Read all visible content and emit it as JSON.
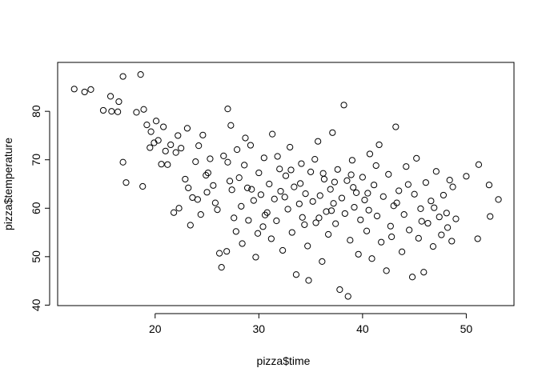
{
  "chart_data": {
    "type": "scatter",
    "title": "",
    "xlabel": "pizza$time",
    "ylabel": "pizza$temperature",
    "xlim": [
      10.6,
      54.6
    ],
    "ylim": [
      39.9,
      90.1
    ],
    "x_ticks": [
      20,
      30,
      40,
      50
    ],
    "y_ticks": [
      40,
      50,
      60,
      70,
      80
    ],
    "grid": false,
    "legend": "none",
    "marker": "open-circle",
    "series": [
      {
        "points": [
          [
            12.2,
            84.6
          ],
          [
            13.2,
            84.0
          ],
          [
            13.8,
            84.5
          ],
          [
            15.0,
            80.2
          ],
          [
            15.8,
            80.0
          ],
          [
            16.4,
            79.9
          ],
          [
            16.5,
            82.0
          ],
          [
            16.9,
            87.2
          ],
          [
            18.6,
            87.6
          ],
          [
            18.2,
            79.8
          ],
          [
            18.9,
            80.4
          ],
          [
            17.2,
            65.3
          ],
          [
            18.8,
            64.5
          ],
          [
            16.9,
            69.5
          ],
          [
            15.7,
            83.1
          ],
          [
            19.2,
            77.2
          ],
          [
            19.6,
            75.8
          ],
          [
            19.5,
            72.5
          ],
          [
            20.3,
            74.0
          ],
          [
            20.6,
            69.1
          ],
          [
            20.8,
            76.8
          ],
          [
            21.5,
            73.1
          ],
          [
            22.0,
            71.5
          ],
          [
            21.8,
            59.1
          ],
          [
            22.3,
            60.0
          ],
          [
            22.5,
            72.4
          ],
          [
            23.2,
            64.2
          ],
          [
            23.6,
            62.2
          ],
          [
            23.4,
            56.5
          ],
          [
            24.1,
            61.8
          ],
          [
            24.4,
            58.7
          ],
          [
            24.2,
            72.9
          ],
          [
            24.9,
            66.8
          ],
          [
            25.3,
            70.2
          ],
          [
            25.0,
            63.3
          ],
          [
            25.6,
            64.7
          ],
          [
            25.8,
            61.1
          ],
          [
            26.0,
            59.7
          ],
          [
            26.4,
            47.8
          ],
          [
            26.2,
            50.7
          ],
          [
            26.9,
            51.1
          ],
          [
            27.0,
            80.5
          ],
          [
            27.3,
            77.1
          ],
          [
            27.0,
            69.5
          ],
          [
            27.4,
            63.8
          ],
          [
            27.6,
            58.0
          ],
          [
            27.8,
            55.2
          ],
          [
            27.9,
            72.1
          ],
          [
            28.1,
            66.3
          ],
          [
            28.3,
            60.4
          ],
          [
            28.4,
            52.7
          ],
          [
            28.6,
            68.9
          ],
          [
            28.9,
            64.2
          ],
          [
            29.0,
            57.5
          ],
          [
            29.2,
            73.0
          ],
          [
            29.5,
            61.6
          ],
          [
            29.7,
            49.9
          ],
          [
            30.0,
            67.3
          ],
          [
            30.2,
            62.8
          ],
          [
            30.4,
            56.2
          ],
          [
            30.5,
            70.4
          ],
          [
            30.8,
            59.1
          ],
          [
            31.0,
            65.0
          ],
          [
            31.2,
            53.7
          ],
          [
            31.3,
            75.3
          ],
          [
            31.5,
            61.9
          ],
          [
            31.7,
            57.4
          ],
          [
            32.0,
            68.1
          ],
          [
            32.1,
            63.5
          ],
          [
            32.3,
            51.3
          ],
          [
            32.6,
            66.7
          ],
          [
            32.8,
            59.8
          ],
          [
            33.0,
            72.6
          ],
          [
            33.2,
            55.0
          ],
          [
            33.4,
            64.4
          ],
          [
            33.6,
            46.3
          ],
          [
            33.9,
            60.9
          ],
          [
            34.1,
            69.2
          ],
          [
            34.2,
            58.1
          ],
          [
            34.5,
            63.0
          ],
          [
            34.7,
            52.2
          ],
          [
            34.8,
            45.1
          ],
          [
            35.0,
            67.5
          ],
          [
            35.2,
            61.4
          ],
          [
            35.5,
            57.0
          ],
          [
            35.7,
            73.8
          ],
          [
            35.9,
            62.6
          ],
          [
            36.1,
            49.0
          ],
          [
            36.3,
            66.0
          ],
          [
            36.5,
            59.3
          ],
          [
            36.7,
            54.6
          ],
          [
            36.9,
            63.9
          ],
          [
            37.1,
            75.6
          ],
          [
            37.2,
            61.0
          ],
          [
            37.4,
            56.8
          ],
          [
            37.6,
            68.0
          ],
          [
            37.8,
            43.2
          ],
          [
            38.0,
            62.1
          ],
          [
            38.2,
            81.3
          ],
          [
            38.3,
            58.9
          ],
          [
            38.5,
            65.7
          ],
          [
            38.6,
            41.8
          ],
          [
            38.8,
            53.4
          ],
          [
            39.0,
            69.9
          ],
          [
            39.2,
            60.2
          ],
          [
            39.4,
            63.2
          ],
          [
            39.6,
            50.5
          ],
          [
            39.8,
            57.6
          ],
          [
            40.0,
            66.4
          ],
          [
            40.2,
            61.7
          ],
          [
            40.4,
            55.3
          ],
          [
            40.7,
            71.2
          ],
          [
            40.9,
            49.6
          ],
          [
            41.1,
            64.8
          ],
          [
            41.4,
            58.4
          ],
          [
            41.6,
            73.1
          ],
          [
            41.8,
            53.0
          ],
          [
            42.0,
            62.4
          ],
          [
            42.3,
            47.1
          ],
          [
            42.5,
            67.0
          ],
          [
            42.7,
            56.3
          ],
          [
            43.0,
            60.5
          ],
          [
            43.2,
            76.8
          ],
          [
            43.5,
            63.6
          ],
          [
            43.8,
            51.0
          ],
          [
            44.0,
            58.7
          ],
          [
            44.2,
            68.6
          ],
          [
            44.5,
            55.5
          ],
          [
            44.8,
            45.8
          ],
          [
            45.0,
            62.9
          ],
          [
            45.2,
            70.3
          ],
          [
            45.4,
            53.8
          ],
          [
            45.6,
            59.9
          ],
          [
            45.9,
            46.8
          ],
          [
            46.1,
            65.3
          ],
          [
            46.3,
            56.9
          ],
          [
            46.6,
            61.5
          ],
          [
            46.8,
            52.1
          ],
          [
            47.1,
            67.6
          ],
          [
            47.4,
            58.2
          ],
          [
            47.6,
            54.5
          ],
          [
            47.8,
            62.7
          ],
          [
            48.1,
            59.0
          ],
          [
            48.4,
            65.8
          ],
          [
            48.6,
            53.2
          ],
          [
            48.7,
            64.4
          ],
          [
            49.0,
            57.8
          ],
          [
            50.0,
            66.6
          ],
          [
            51.1,
            53.7
          ],
          [
            51.2,
            69.0
          ],
          [
            52.2,
            64.8
          ],
          [
            52.3,
            58.3
          ],
          [
            53.1,
            61.8
          ],
          [
            26.6,
            70.8
          ],
          [
            28.7,
            74.5
          ],
          [
            29.9,
            54.8
          ],
          [
            31.8,
            70.7
          ],
          [
            33.1,
            67.9
          ],
          [
            34.4,
            56.6
          ],
          [
            35.4,
            70.1
          ],
          [
            36.2,
            67.2
          ],
          [
            37.3,
            65.4
          ],
          [
            38.9,
            66.9
          ],
          [
            40.6,
            59.6
          ],
          [
            41.3,
            68.8
          ],
          [
            42.8,
            54.1
          ],
          [
            44.4,
            64.9
          ],
          [
            45.7,
            57.3
          ],
          [
            46.9,
            60.1
          ],
          [
            48.2,
            56.0
          ],
          [
            27.2,
            65.6
          ],
          [
            29.3,
            63.9
          ],
          [
            30.6,
            58.6
          ],
          [
            32.5,
            62.3
          ],
          [
            34.0,
            65.1
          ],
          [
            35.8,
            58.0
          ],
          [
            37.0,
            59.5
          ],
          [
            39.1,
            64.3
          ],
          [
            40.5,
            63.1
          ],
          [
            43.3,
            61.1
          ],
          [
            25.1,
            67.3
          ],
          [
            24.6,
            75.1
          ],
          [
            23.9,
            69.6
          ],
          [
            22.9,
            66.0
          ],
          [
            21.2,
            69.0
          ],
          [
            20.1,
            78.0
          ],
          [
            19.9,
            73.5
          ],
          [
            21.0,
            71.8
          ],
          [
            22.2,
            75.0
          ],
          [
            23.1,
            76.5
          ]
        ]
      }
    ]
  }
}
